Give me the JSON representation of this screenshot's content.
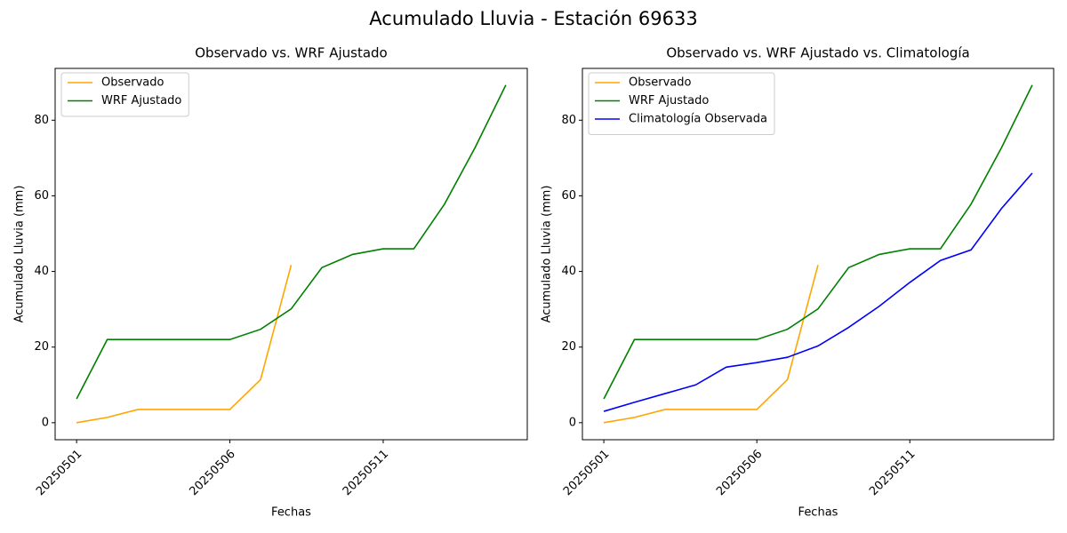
{
  "title": "Acumulado Lluvia - Estación 69633",
  "chart_data": [
    {
      "type": "line",
      "title": "Observado vs. WRF Ajustado",
      "xlabel": "Fechas",
      "ylabel": "Acumulado Lluvia (mm)",
      "categories": [
        "20250501",
        null,
        null,
        null,
        null,
        "20250506",
        null,
        null,
        null,
        null,
        "20250511",
        null,
        null,
        null,
        null
      ],
      "series": [
        {
          "name": "Observado",
          "color": "orange",
          "values": [
            0,
            1.4,
            3.5,
            3.5,
            3.5,
            3.5,
            11.4,
            41.7,
            null,
            null,
            null,
            null,
            null,
            null,
            null
          ]
        },
        {
          "name": "WRF Ajustado",
          "color": "green",
          "values": [
            6.3,
            22.0,
            22.0,
            22.0,
            22.0,
            22.0,
            24.7,
            30.1,
            41.0,
            44.5,
            46.0,
            46.0,
            57.8,
            72.8,
            89.3
          ]
        }
      ],
      "ylim": [
        -4.5,
        93.7
      ],
      "yticks": [
        0,
        20,
        40,
        60,
        80
      ],
      "legend": "upper left"
    },
    {
      "type": "line",
      "title": "Observado vs. WRF Ajustado vs. Climatología",
      "xlabel": "Fechas",
      "ylabel": "Acumulado Lluvia (mm)",
      "categories": [
        "20250501",
        null,
        null,
        null,
        null,
        "20250506",
        null,
        null,
        null,
        null,
        "20250511",
        null,
        null,
        null,
        null
      ],
      "series": [
        {
          "name": "Observado",
          "color": "orange",
          "values": [
            0,
            1.4,
            3.5,
            3.5,
            3.5,
            3.5,
            11.4,
            41.7,
            null,
            null,
            null,
            null,
            null,
            null,
            null
          ]
        },
        {
          "name": "WRF Ajustado",
          "color": "green",
          "values": [
            6.3,
            22.0,
            22.0,
            22.0,
            22.0,
            22.0,
            24.7,
            30.1,
            41.0,
            44.5,
            46.0,
            46.0,
            57.8,
            72.8,
            89.3
          ]
        },
        {
          "name": "Climatología Observada",
          "color": "blue",
          "values": [
            3.0,
            5.4,
            7.7,
            10.0,
            14.7,
            15.9,
            17.3,
            20.3,
            25.2,
            30.8,
            37.1,
            42.9,
            45.7,
            56.7,
            66.0
          ]
        }
      ],
      "ylim": [
        -4.5,
        93.7
      ],
      "yticks": [
        0,
        20,
        40,
        60,
        80
      ],
      "legend": "upper left"
    }
  ]
}
